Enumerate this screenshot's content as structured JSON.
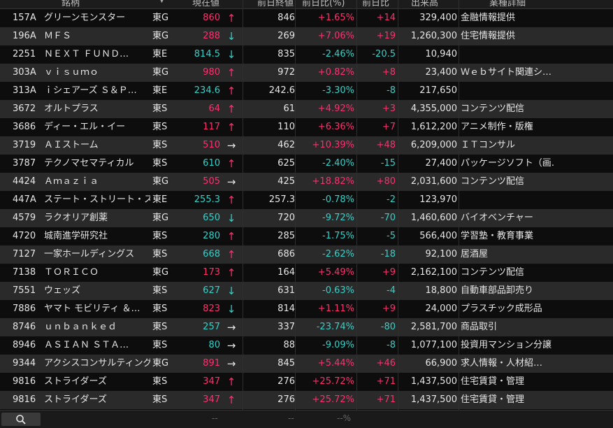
{
  "header": {
    "name": "銘柄",
    "sort": "▼",
    "price": "現在値",
    "prev": "前日終値",
    "pct": "前日比(%)",
    "chg": "前日比",
    "vol": "出来高",
    "industry": "業種詳細"
  },
  "colors": {
    "up": "#ff2f6e",
    "down": "#33d1c9",
    "flat": "#e6e6e6"
  },
  "rows": [
    {
      "code": "157A",
      "name": "グリーンモンスター",
      "market": "東G",
      "price": "860",
      "arrow": "↑",
      "dir": "up",
      "prev": "846",
      "pct": "+1.65%",
      "chg": "+14",
      "vol": "329,400",
      "industry": "金融情報提供"
    },
    {
      "code": "196A",
      "name": "ＭＦＳ",
      "market": "東G",
      "price": "288",
      "arrow": "↓",
      "dir": "up",
      "arrow_dir": "down",
      "prev": "269",
      "pct": "+7.06%",
      "chg": "+19",
      "vol": "1,260,300",
      "industry": "住宅情報提供"
    },
    {
      "code": "2251",
      "name": "ＮＥＸＴ ＦＵＮＤ…",
      "market": "東E",
      "price": "814.5",
      "arrow": "↓",
      "dir": "down",
      "prev": "835",
      "pct": "-2.46%",
      "chg": "-20.5",
      "vol": "10,940",
      "industry": ""
    },
    {
      "code": "303A",
      "name": "ｖｉｓｕｍｏ",
      "market": "東G",
      "price": "980",
      "arrow": "↑",
      "dir": "up",
      "prev": "972",
      "pct": "+0.82%",
      "chg": "+8",
      "vol": "23,400",
      "industry": "Ｗｅｂサイト関連シ…"
    },
    {
      "code": "313A",
      "name": "ｉシェアーズ Ｓ＆Ｐ…",
      "market": "東E",
      "price": "234.6",
      "arrow": "↑",
      "dir": "down",
      "arrow_dir": "up",
      "prev": "242.6",
      "pct": "-3.30%",
      "chg": "-8",
      "vol": "217,650",
      "industry": ""
    },
    {
      "code": "3672",
      "name": "オルトプラス",
      "market": "東S",
      "price": "64",
      "arrow": "↑",
      "dir": "up",
      "prev": "61",
      "pct": "+4.92%",
      "chg": "+3",
      "vol": "4,355,000",
      "industry": "コンテンツ配信"
    },
    {
      "code": "3686",
      "name": "ディー・エル・イー",
      "market": "東S",
      "price": "117",
      "arrow": "↑",
      "dir": "up",
      "prev": "110",
      "pct": "+6.36%",
      "chg": "+7",
      "vol": "1,612,200",
      "industry": "アニメ制作・版権"
    },
    {
      "code": "3719",
      "name": "ＡＩストーム",
      "market": "東S",
      "price": "510",
      "arrow": "→",
      "dir": "up",
      "arrow_dir": "flat",
      "prev": "462",
      "pct": "+10.39%",
      "chg": "+48",
      "vol": "6,209,000",
      "industry": "ＩＴコンサル"
    },
    {
      "code": "3787",
      "name": "テクノマセマティカル",
      "market": "東S",
      "price": "610",
      "arrow": "↑",
      "dir": "down",
      "arrow_dir": "up",
      "prev": "625",
      "pct": "-2.40%",
      "chg": "-15",
      "vol": "27,400",
      "industry": "パッケージソフト（画…"
    },
    {
      "code": "4424",
      "name": "Ａｍａｚｉａ",
      "market": "東G",
      "price": "505",
      "arrow": "→",
      "dir": "up",
      "arrow_dir": "flat",
      "prev": "425",
      "pct": "+18.82%",
      "chg": "+80",
      "vol": "2,031,600",
      "industry": "コンテンツ配信"
    },
    {
      "code": "447A",
      "name": "ステート・ストリート・スパ…",
      "market": "東E",
      "price": "255.3",
      "arrow": "↑",
      "dir": "down",
      "arrow_dir": "up",
      "prev": "257.3",
      "pct": "-0.78%",
      "chg": "-2",
      "vol": "123,970",
      "industry": ""
    },
    {
      "code": "4579",
      "name": "ラクオリア創薬",
      "market": "東G",
      "price": "650",
      "arrow": "↓",
      "dir": "down",
      "prev": "720",
      "pct": "-9.72%",
      "chg": "-70",
      "vol": "1,460,600",
      "industry": "バイオベンチャー"
    },
    {
      "code": "4720",
      "name": "城南進学研究社",
      "market": "東S",
      "price": "280",
      "arrow": "↑",
      "dir": "down",
      "arrow_dir": "up",
      "prev": "285",
      "pct": "-1.75%",
      "chg": "-5",
      "vol": "566,400",
      "industry": "学習塾・教育事業"
    },
    {
      "code": "7127",
      "name": "一家ホールディングス",
      "market": "東S",
      "price": "668",
      "arrow": "↑",
      "dir": "down",
      "arrow_dir": "up",
      "prev": "686",
      "pct": "-2.62%",
      "chg": "-18",
      "vol": "92,100",
      "industry": "居酒屋"
    },
    {
      "code": "7138",
      "name": "ＴＯＲＩＣＯ",
      "market": "東G",
      "price": "173",
      "arrow": "↑",
      "dir": "up",
      "prev": "164",
      "pct": "+5.49%",
      "chg": "+9",
      "vol": "2,162,100",
      "industry": "コンテンツ配信"
    },
    {
      "code": "7551",
      "name": "ウェッズ",
      "market": "東S",
      "price": "627",
      "arrow": "↓",
      "dir": "down",
      "prev": "631",
      "pct": "-0.63%",
      "chg": "-4",
      "vol": "18,800",
      "industry": "自動車部品卸売り"
    },
    {
      "code": "7886",
      "name": "ヤマト モビリティ ＆…",
      "market": "東S",
      "price": "823",
      "arrow": "↓",
      "dir": "up",
      "arrow_dir": "down",
      "prev": "814",
      "pct": "+1.11%",
      "chg": "+9",
      "vol": "24,000",
      "industry": "プラスチック成形品"
    },
    {
      "code": "8746",
      "name": "ｕｎｂａｎｋｅｄ",
      "market": "東S",
      "price": "257",
      "arrow": "→",
      "dir": "down",
      "arrow_dir": "flat",
      "prev": "337",
      "pct": "-23.74%",
      "chg": "-80",
      "vol": "2,581,700",
      "industry": "商品取引"
    },
    {
      "code": "8946",
      "name": "ＡＳＩＡＮ ＳＴＡ…",
      "market": "東S",
      "price": "80",
      "arrow": "→",
      "dir": "down",
      "arrow_dir": "flat",
      "prev": "88",
      "pct": "-9.09%",
      "chg": "-8",
      "vol": "1,077,100",
      "industry": "投資用マンション分譲"
    },
    {
      "code": "9344",
      "name": "アクシスコンサルティング",
      "market": "東G",
      "price": "891",
      "arrow": "→",
      "dir": "up",
      "arrow_dir": "flat",
      "prev": "845",
      "pct": "+5.44%",
      "chg": "+46",
      "vol": "66,900",
      "industry": "求人情報・人材紹…"
    },
    {
      "code": "9816",
      "name": "ストライダーズ",
      "market": "東S",
      "price": "347",
      "arrow": "↑",
      "dir": "up",
      "prev": "276",
      "pct": "+25.72%",
      "chg": "+71",
      "vol": "1,437,500",
      "industry": "住宅賃貸・管理"
    },
    {
      "code": "9816",
      "name": "ストライダーズ",
      "market": "東S",
      "price": "347",
      "arrow": "↑",
      "dir": "up",
      "prev": "276",
      "pct": "+25.72%",
      "chg": "+71",
      "vol": "1,437,500",
      "industry": "住宅賃貸・管理"
    }
  ],
  "footer": {
    "price": "--",
    "prev": "--",
    "pct": "--%"
  }
}
